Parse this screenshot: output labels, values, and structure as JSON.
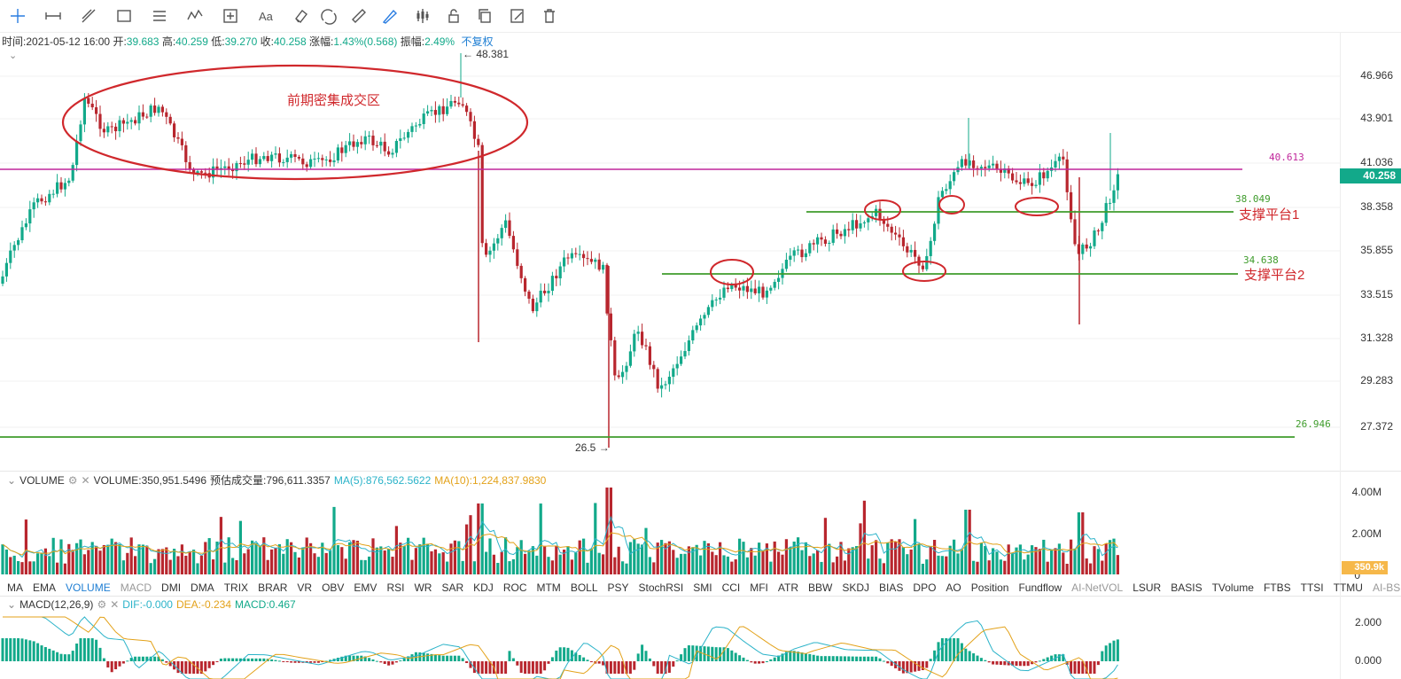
{
  "toolbar": {
    "icons": [
      "crosshair-icon",
      "horizontal-ray-icon",
      "trend-line-icon",
      "rectangle-icon",
      "parallel-lines-icon",
      "wave-icon",
      "measure-icon",
      "text-icon",
      "eraser-icon",
      "magnet-icon",
      "ruler-icon",
      "brush-icon",
      "candle-type-icon",
      "lock-icon",
      "copy-icon",
      "edit-icon",
      "trash-icon"
    ]
  },
  "ohlc": {
    "time_label": "时间:",
    "time": "2021-05-12 16:00",
    "open_label": "开:",
    "open": "39.683",
    "high_label": "高:",
    "high": "40.259",
    "low_label": "低:",
    "low": "39.270",
    "close_label": "收:",
    "close": "40.258",
    "change_label": "涨幅:",
    "change": "1.43%(0.568)",
    "amp_label": "振幅:",
    "amp": "2.49%",
    "adjust": "不复权"
  },
  "price_axis": {
    "ticks": [
      "46.966",
      "43.901",
      "41.036",
      "38.358",
      "35.855",
      "33.515",
      "31.328",
      "29.283",
      "27.372"
    ],
    "current": "40.258"
  },
  "annotations": {
    "zone": "前期密集成交区",
    "high_marker": "← 48.381",
    "low_marker": "26.5 →",
    "support1": "支撑平台1",
    "support2": "支撑平台2",
    "level_magenta": "40.613",
    "level_support1": "38.049",
    "level_support2": "34.638",
    "level_bottom": "26.946"
  },
  "volume_pane": {
    "name": "VOLUME",
    "value": "VOLUME:350,951.5496",
    "estimate": "预估成交量:796,611.3357",
    "ma5": "MA(5):876,562.5622",
    "ma10": "MA(10):1,224,837.9830",
    "ticks": [
      "4.00M",
      "2.00M",
      "0"
    ],
    "current": "350.9k"
  },
  "indicator_tabs": [
    "MA",
    "EMA",
    "VOLUME",
    "MACD",
    "DMI",
    "DMA",
    "TRIX",
    "BRAR",
    "VR",
    "OBV",
    "EMV",
    "RSI",
    "WR",
    "SAR",
    "KDJ",
    "ROC",
    "MTM",
    "BOLL",
    "PSY",
    "StochRSI",
    "SMI",
    "CCI",
    "MFI",
    "ATR",
    "BBW",
    "SKDJ",
    "BIAS",
    "DPO",
    "AO",
    "Position",
    "Fundflow",
    "AI-NetVOL",
    "LSUR",
    "BASIS",
    "TVolume",
    "FTBS",
    "TTSI",
    "TTMU",
    "AI-BSI"
  ],
  "macd_pane": {
    "name": "MACD(12,26,9)",
    "dif": "DIF:-0.000",
    "dea": "DEA:-0.234",
    "macd": "MACD:0.467",
    "ticks": [
      "2.000",
      "0.000"
    ]
  },
  "colors": {
    "up": "#12a98a",
    "down": "#b8262e",
    "support": "#3f9c2c",
    "magenta": "#c1279c",
    "annot": "#d0282c",
    "ma5": "#2bb3c9",
    "ma10": "#e3a21a"
  }
}
